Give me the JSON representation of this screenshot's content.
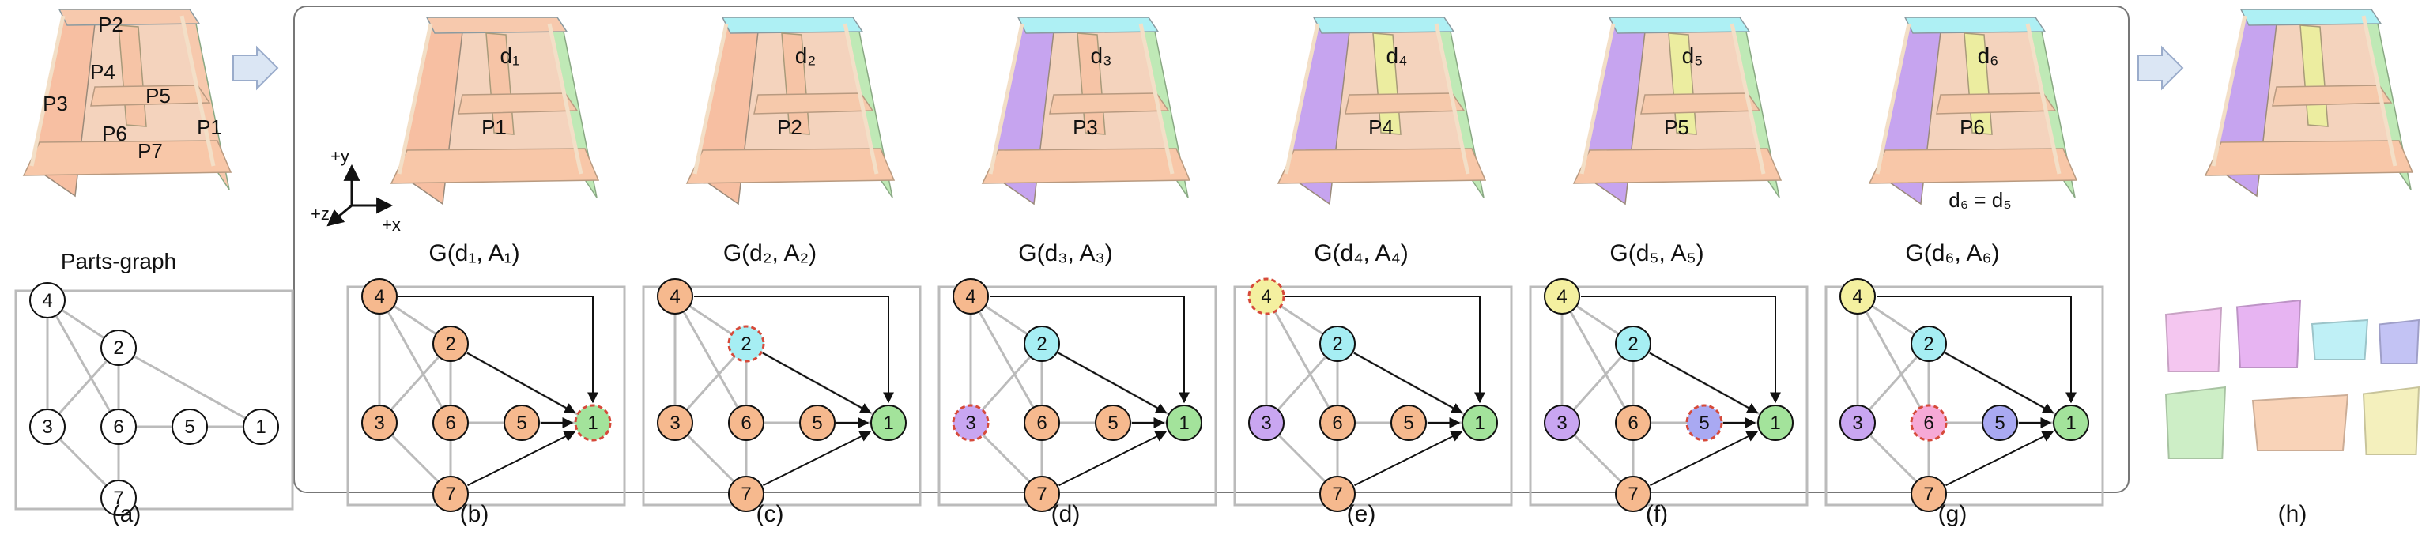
{
  "left_panel": {
    "part_labels": [
      "P2",
      "P4",
      "P3",
      "P5",
      "P1",
      "P6",
      "P7"
    ],
    "graph_title": "Parts-graph",
    "caption": "(a)",
    "nodes": [
      {
        "id": "4",
        "fill": "#ffffff"
      },
      {
        "id": "2",
        "fill": "#ffffff"
      },
      {
        "id": "3",
        "fill": "#ffffff"
      },
      {
        "id": "6",
        "fill": "#ffffff"
      },
      {
        "id": "5",
        "fill": "#ffffff"
      },
      {
        "id": "1",
        "fill": "#ffffff"
      },
      {
        "id": "7",
        "fill": "#ffffff"
      }
    ]
  },
  "steps": [
    {
      "caption": "(b)",
      "title": "G(d₁, A₁)",
      "direction_label": "d₁",
      "part_labels": [
        "P1"
      ],
      "axes": {
        "y": "+y",
        "z": "+z",
        "x": "+x"
      },
      "colors": {
        "left": "#f7bfa2",
        "right": "#bfe9b6",
        "top": "#f7c9ad",
        "mid": "#f6c4a6"
      },
      "nodes": [
        {
          "id": "4",
          "fill": "#f6b98e",
          "dashed": false
        },
        {
          "id": "2",
          "fill": "#f6b98e",
          "dashed": false
        },
        {
          "id": "3",
          "fill": "#f6b98e",
          "dashed": false
        },
        {
          "id": "6",
          "fill": "#f6b98e",
          "dashed": false
        },
        {
          "id": "5",
          "fill": "#f6b98e",
          "dashed": false
        },
        {
          "id": "1",
          "fill": "#a3e39b",
          "dashed": true
        },
        {
          "id": "7",
          "fill": "#f6b98e",
          "dashed": false
        }
      ]
    },
    {
      "caption": "(c)",
      "title": "G(d₂, A₂)",
      "direction_label": "d₂",
      "part_labels": [
        "P2"
      ],
      "colors": {
        "left": "#f7bfa2",
        "right": "#bfe9b6",
        "top": "#aef0f4",
        "mid": "#f6c4a6"
      },
      "nodes": [
        {
          "id": "4",
          "fill": "#f6b98e",
          "dashed": false
        },
        {
          "id": "2",
          "fill": "#a6eef3",
          "dashed": true
        },
        {
          "id": "3",
          "fill": "#f6b98e",
          "dashed": false
        },
        {
          "id": "6",
          "fill": "#f6b98e",
          "dashed": false
        },
        {
          "id": "5",
          "fill": "#f6b98e",
          "dashed": false
        },
        {
          "id": "1",
          "fill": "#a3e39b",
          "dashed": false
        },
        {
          "id": "7",
          "fill": "#f6b98e",
          "dashed": false
        }
      ]
    },
    {
      "caption": "(d)",
      "title": "G(d₃, A₃)",
      "direction_label": "d₃",
      "part_labels": [
        "P3"
      ],
      "colors": {
        "left": "#c6a4ef",
        "right": "#bfe9b6",
        "top": "#aef0f4",
        "mid": "#f6c4a6"
      },
      "nodes": [
        {
          "id": "4",
          "fill": "#f6b98e",
          "dashed": false
        },
        {
          "id": "2",
          "fill": "#a6eef3",
          "dashed": false
        },
        {
          "id": "3",
          "fill": "#c9a6f1",
          "dashed": true
        },
        {
          "id": "6",
          "fill": "#f6b98e",
          "dashed": false
        },
        {
          "id": "5",
          "fill": "#f6b98e",
          "dashed": false
        },
        {
          "id": "1",
          "fill": "#a3e39b",
          "dashed": false
        },
        {
          "id": "7",
          "fill": "#f6b98e",
          "dashed": false
        }
      ]
    },
    {
      "caption": "(e)",
      "title": "G(d₄, A₄)",
      "direction_label": "d₄",
      "part_labels": [
        "P4"
      ],
      "colors": {
        "left": "#c6a4ef",
        "right": "#bfe9b6",
        "top": "#aef0f4",
        "mid": "#eceda0"
      },
      "nodes": [
        {
          "id": "4",
          "fill": "#f4f0a0",
          "dashed": true
        },
        {
          "id": "2",
          "fill": "#a6eef3",
          "dashed": false
        },
        {
          "id": "3",
          "fill": "#c9a6f1",
          "dashed": false
        },
        {
          "id": "6",
          "fill": "#f6b98e",
          "dashed": false
        },
        {
          "id": "5",
          "fill": "#f6b98e",
          "dashed": false
        },
        {
          "id": "1",
          "fill": "#a3e39b",
          "dashed": false
        },
        {
          "id": "7",
          "fill": "#f6b98e",
          "dashed": false
        }
      ]
    },
    {
      "caption": "(f)",
      "title": "G(d₅, A₅)",
      "direction_label": "d₅",
      "part_labels": [
        "P5"
      ],
      "colors": {
        "left": "#c6a4ef",
        "right": "#bfe9b6",
        "top": "#aef0f4",
        "mid": "#eceda0"
      },
      "nodes": [
        {
          "id": "4",
          "fill": "#f4f0a0",
          "dashed": false
        },
        {
          "id": "2",
          "fill": "#a6eef3",
          "dashed": false
        },
        {
          "id": "3",
          "fill": "#c9a6f1",
          "dashed": false
        },
        {
          "id": "6",
          "fill": "#f6b98e",
          "dashed": false
        },
        {
          "id": "5",
          "fill": "#a9a9f2",
          "dashed": true
        },
        {
          "id": "1",
          "fill": "#a3e39b",
          "dashed": false
        },
        {
          "id": "7",
          "fill": "#f6b98e",
          "dashed": false
        }
      ]
    },
    {
      "caption": "(g)",
      "title": "G(d₆, A₆)",
      "direction_label": "d₆",
      "part_labels": [
        "P6"
      ],
      "equation": "d₆ = d₅",
      "colors": {
        "left": "#c6a4ef",
        "right": "#bfe9b6",
        "top": "#aef0f4",
        "mid": "#eceda0"
      },
      "nodes": [
        {
          "id": "4",
          "fill": "#f4f0a0",
          "dashed": false
        },
        {
          "id": "2",
          "fill": "#a6eef3",
          "dashed": false
        },
        {
          "id": "3",
          "fill": "#c9a6f1",
          "dashed": false
        },
        {
          "id": "6",
          "fill": "#f6a9d6",
          "dashed": true
        },
        {
          "id": "5",
          "fill": "#a9a9f2",
          "dashed": false
        },
        {
          "id": "1",
          "fill": "#a3e39b",
          "dashed": false
        },
        {
          "id": "7",
          "fill": "#f6b98e",
          "dashed": false
        }
      ]
    }
  ],
  "right_panel": {
    "caption": "(h)",
    "parts": [
      {
        "fill": "#f4c6f0"
      },
      {
        "fill": "#e7b4f2"
      },
      {
        "fill": "#bff0f6"
      },
      {
        "fill": "#c3c3f4"
      },
      {
        "fill": "#cdeec6"
      },
      {
        "fill": "#f9d3b8"
      },
      {
        "fill": "#f4f0bd"
      }
    ]
  }
}
